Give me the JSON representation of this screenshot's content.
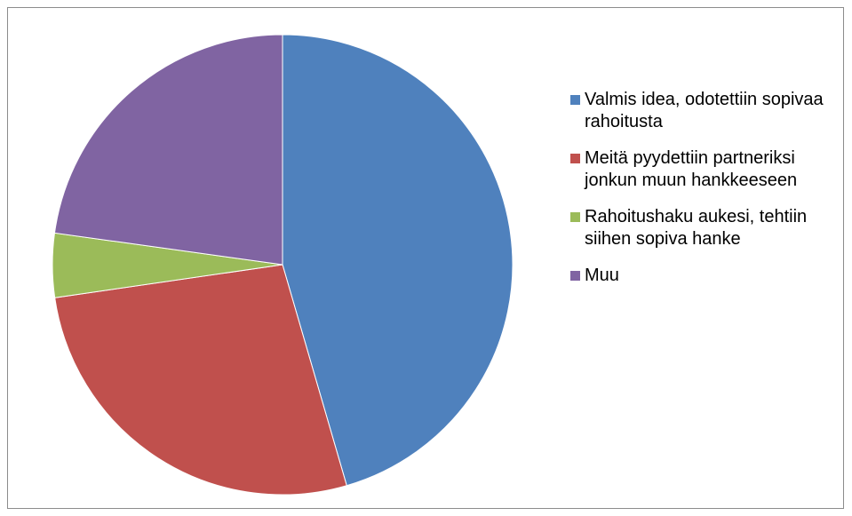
{
  "chart_data": {
    "type": "pie",
    "categories": [
      "Valmis idea, odotettiin sopivaa rahoitusta",
      "Meitä pyydettiin partneriksi jonkun muun hankkeeseen",
      "Rahoitushaku aukesi, tehtiin siihen sopiva hanke",
      "Muu"
    ],
    "values": [
      45.5,
      27.2,
      4.5,
      22.8
    ],
    "colors": [
      "#4f81bd",
      "#c0504d",
      "#9bbb59",
      "#8064a2"
    ],
    "legend": "right"
  }
}
